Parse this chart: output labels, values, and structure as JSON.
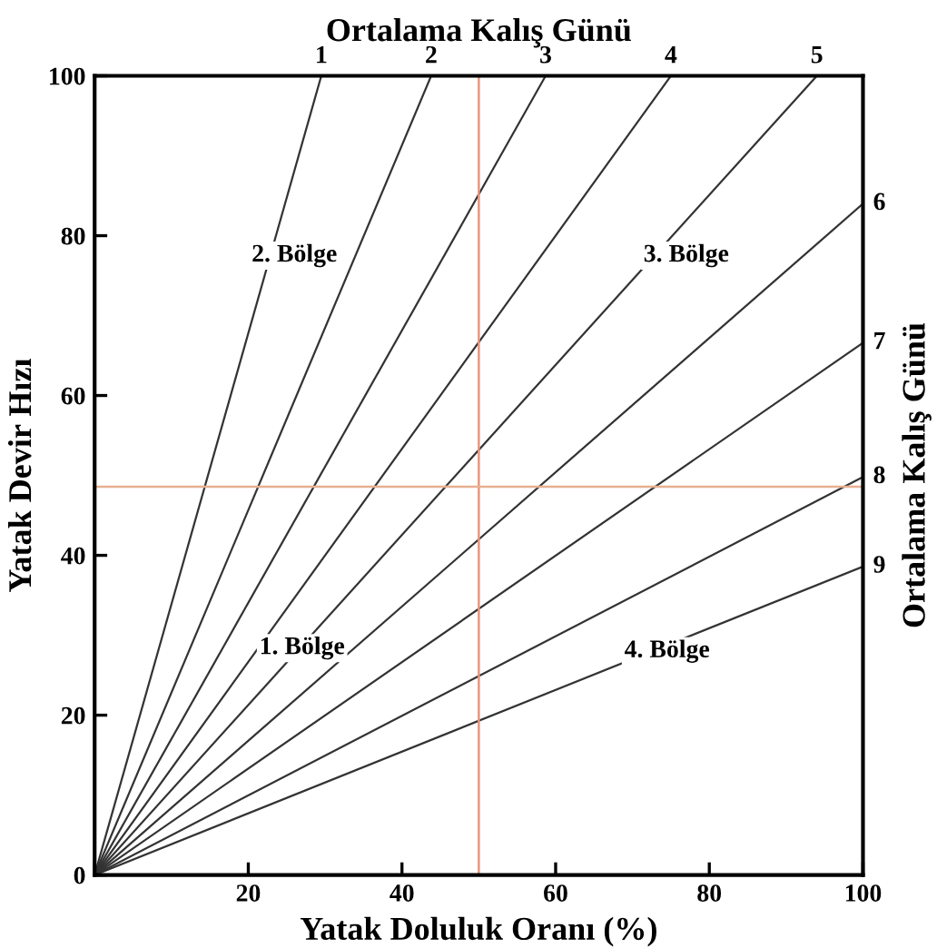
{
  "chart_data": {
    "type": "line",
    "xlabel": "Yatak Doluluk Oranı (%)",
    "ylabel": "Yatak Devir Hızı",
    "x2label": "Ortalama Kalış Günü",
    "y2label": "Ortalama Kalış Günü",
    "xlim": [
      0,
      100
    ],
    "ylim": [
      0,
      100
    ],
    "xticks": [
      {
        "value": 0,
        "label": null
      },
      20,
      40,
      60,
      80,
      100
    ],
    "yticks": [
      0,
      20,
      40,
      60,
      80,
      100
    ],
    "grid": false,
    "marker": "none",
    "line_style": "solid",
    "series": [
      {
        "color": "#333333",
        "x": [
          0,
          29.5
        ],
        "values": [
          0,
          100
        ]
      },
      {
        "color": "#333333",
        "x": [
          0,
          43.8
        ],
        "values": [
          0,
          100
        ]
      },
      {
        "color": "#333333",
        "x": [
          0,
          58.7
        ],
        "values": [
          0,
          100
        ]
      },
      {
        "color": "#333333",
        "x": [
          0,
          75
        ],
        "values": [
          0,
          100
        ]
      },
      {
        "color": "#333333",
        "x": [
          0,
          94
        ],
        "values": [
          0,
          100
        ]
      },
      {
        "color": "#333333",
        "x": [
          0,
          100
        ],
        "values": [
          0,
          84
        ]
      },
      {
        "color": "#333333",
        "x": [
          0,
          100
        ],
        "values": [
          0,
          66.6
        ]
      },
      {
        "color": "#333333",
        "x": [
          0,
          100
        ],
        "values": [
          0,
          49.8
        ]
      },
      {
        "color": "#333333",
        "x": [
          0,
          100
        ],
        "values": [
          0,
          38.6
        ]
      }
    ],
    "ref_lines": [
      {
        "axis": "x",
        "value": 50,
        "label": null,
        "color": "#e8967a"
      },
      {
        "axis": "y",
        "value": 48.6,
        "label": null,
        "color": "#e8b090"
      }
    ],
    "annotations": [
      {
        "text": "1",
        "x": 29.5,
        "y": 100
      },
      {
        "text": "2",
        "x": 43.8,
        "y": 100
      },
      {
        "text": "3",
        "x": 58.7,
        "y": 100
      },
      {
        "text": "4",
        "x": 75,
        "y": 100
      },
      {
        "text": "5",
        "x": 94,
        "y": 100
      },
      {
        "text": "6",
        "x": 100,
        "y": 84
      },
      {
        "text": "7",
        "x": 100,
        "y": 66.6
      },
      {
        "text": "8",
        "x": 100,
        "y": 49.8
      },
      {
        "text": "9",
        "x": 100,
        "y": 38.6
      },
      "2. Bölge",
      "3. Bölge",
      "1. Bölge",
      "4. Bölge"
    ]
  }
}
